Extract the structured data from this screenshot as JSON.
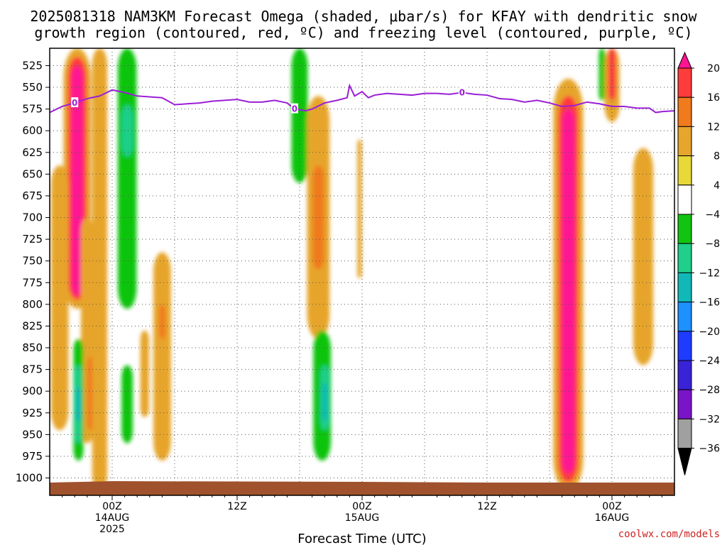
{
  "title": {
    "line1": "2025081318 NAM3KM Forecast Omega (shaded, μbar/s) for KFAY with dendritic snow",
    "line2": "growth region (contoured, red, ºC) and freezing level (contoured, purple, ºC)"
  },
  "credit": "coolwx.com/models",
  "colors": {
    "freezing_level": "#9b1fd6",
    "ground": "#a0522d",
    "grid": "#555555"
  },
  "chart_data": {
    "type": "heatmap",
    "title": "2025081318 NAM3KM Forecast Omega (shaded, μbar/s) for KFAY with dendritic snow growth region (contoured, red, ºC) and freezing level (contoured, purple, ºC)",
    "xlabel": "Forecast Time (UTC)",
    "ylabel": "",
    "x_range_hours": [
      -5,
      45
    ],
    "x_ticks": [
      {
        "hour": 0,
        "line1": "00Z",
        "line2": "14AUG",
        "line3": "2025"
      },
      {
        "hour": 10,
        "line1": "12Z",
        "line2": "",
        "line3": ""
      },
      {
        "hour": 20,
        "line1": "00Z",
        "line2": "15AUG",
        "line3": ""
      },
      {
        "hour": 30,
        "line1": "12Z",
        "line2": "",
        "line3": ""
      },
      {
        "hour": 40,
        "line1": "00Z",
        "line2": "16AUG",
        "line3": ""
      }
    ],
    "y_range_hpa": [
      1020,
      505
    ],
    "y_ticks": [
      525,
      550,
      575,
      600,
      625,
      650,
      675,
      700,
      725,
      750,
      775,
      800,
      825,
      850,
      875,
      900,
      925,
      950,
      975,
      1000
    ],
    "colorbar": {
      "levels": [
        "20",
        "16",
        "12",
        "8",
        "4",
        "−4",
        "−8",
        "−12",
        "−16",
        "−20",
        "−24",
        "−28",
        "−32",
        "−36"
      ],
      "colors": [
        "#ff1493",
        "#ff3b3b",
        "#f07a1c",
        "#e6a52c",
        "#e8d838",
        "#ffffff",
        "#11c411",
        "#1fcf8a",
        "#11b8b8",
        "#1e90ff",
        "#1e3cff",
        "#3a22d6",
        "#7a14c8",
        "#a0a0a0",
        "#000000"
      ]
    },
    "freezing_level": {
      "label": "0",
      "points": [
        [
          -5,
          579
        ],
        [
          -4,
          572
        ],
        [
          -3,
          568
        ],
        [
          -2,
          563
        ],
        [
          -1,
          560
        ],
        [
          0,
          553
        ],
        [
          1,
          556
        ],
        [
          2,
          560
        ],
        [
          3,
          561
        ],
        [
          4,
          562
        ],
        [
          5,
          570
        ],
        [
          6,
          569
        ],
        [
          7,
          568
        ],
        [
          8,
          566
        ],
        [
          9,
          565
        ],
        [
          10,
          564
        ],
        [
          11,
          567
        ],
        [
          12,
          567
        ],
        [
          13,
          565
        ],
        [
          14,
          568
        ],
        [
          14.6,
          575
        ],
        [
          15.5,
          577
        ],
        [
          16,
          575
        ],
        [
          17,
          568
        ],
        [
          18,
          565
        ],
        [
          18.8,
          562
        ],
        [
          19,
          548
        ],
        [
          19.4,
          560
        ],
        [
          20,
          555
        ],
        [
          20.5,
          562
        ],
        [
          21,
          559
        ],
        [
          22,
          557
        ],
        [
          23,
          558
        ],
        [
          24,
          559
        ],
        [
          25,
          557
        ],
        [
          26,
          557
        ],
        [
          27,
          558
        ],
        [
          28,
          556
        ],
        [
          29,
          558
        ],
        [
          30,
          559
        ],
        [
          31,
          563
        ],
        [
          32,
          564
        ],
        [
          33,
          567
        ],
        [
          34,
          565
        ],
        [
          35,
          568
        ],
        [
          36,
          572
        ],
        [
          37,
          571
        ],
        [
          38,
          567
        ],
        [
          39,
          569
        ],
        [
          40,
          572
        ],
        [
          41,
          572
        ],
        [
          42,
          574
        ],
        [
          43,
          574
        ],
        [
          43.5,
          579
        ],
        [
          44,
          578
        ],
        [
          45,
          577
        ]
      ]
    },
    "omega_features": [
      {
        "hour": -2.8,
        "p_top": 505,
        "p_bot": 805,
        "halfwidth": 1.1,
        "value": 6
      },
      {
        "hour": -2.8,
        "p_top": 515,
        "p_bot": 795,
        "halfwidth": 0.75,
        "value": 14
      },
      {
        "hour": -2.8,
        "p_top": 525,
        "p_bot": 790,
        "halfwidth": 0.45,
        "value": 18
      },
      {
        "hour": -4.2,
        "p_top": 640,
        "p_bot": 945,
        "halfwidth": 0.7,
        "value": 6
      },
      {
        "hour": -2.0,
        "p_top": 700,
        "p_bot": 960,
        "halfwidth": 0.5,
        "value": 6
      },
      {
        "hour": -1.7,
        "p_top": 860,
        "p_bot": 945,
        "halfwidth": 0.3,
        "value": 10
      },
      {
        "hour": -1.0,
        "p_top": 505,
        "p_bot": 1015,
        "halfwidth": 0.6,
        "value": 6
      },
      {
        "hour": -2.7,
        "p_top": 840,
        "p_bot": 980,
        "halfwidth": 0.4,
        "value": -6
      },
      {
        "hour": -2.7,
        "p_top": 870,
        "p_bot": 960,
        "halfwidth": 0.28,
        "value": -10
      },
      {
        "hour": -2.7,
        "p_top": 895,
        "p_bot": 935,
        "halfwidth": 0.2,
        "value": -14
      },
      {
        "hour": 1.2,
        "p_top": 505,
        "p_bot": 805,
        "halfwidth": 0.75,
        "value": -6
      },
      {
        "hour": 1.2,
        "p_top": 570,
        "p_bot": 630,
        "halfwidth": 0.45,
        "value": -10
      },
      {
        "hour": 1.2,
        "p_top": 870,
        "p_bot": 960,
        "halfwidth": 0.45,
        "value": -6
      },
      {
        "hour": 2.6,
        "p_top": 830,
        "p_bot": 930,
        "halfwidth": 0.35,
        "value": 6
      },
      {
        "hour": 4.0,
        "p_top": 740,
        "p_bot": 980,
        "halfwidth": 0.7,
        "value": 6
      },
      {
        "hour": 4.0,
        "p_top": 800,
        "p_bot": 840,
        "halfwidth": 0.25,
        "value": 10
      },
      {
        "hour": 15.0,
        "p_top": 505,
        "p_bot": 660,
        "halfwidth": 0.65,
        "value": -6
      },
      {
        "hour": 16.5,
        "p_top": 560,
        "p_bot": 840,
        "halfwidth": 0.9,
        "value": 6
      },
      {
        "hour": 16.5,
        "p_top": 640,
        "p_bot": 760,
        "halfwidth": 0.45,
        "value": 10
      },
      {
        "hour": 16.8,
        "p_top": 830,
        "p_bot": 980,
        "halfwidth": 0.7,
        "value": -6
      },
      {
        "hour": 17.0,
        "p_top": 870,
        "p_bot": 945,
        "halfwidth": 0.35,
        "value": -10
      },
      {
        "hour": 17.0,
        "p_top": 890,
        "p_bot": 935,
        "halfwidth": 0.2,
        "value": -14
      },
      {
        "hour": 19.8,
        "p_top": 610,
        "p_bot": 770,
        "halfwidth": 0.18,
        "value": 6
      },
      {
        "hour": 36.5,
        "p_top": 540,
        "p_bot": 1015,
        "halfwidth": 1.2,
        "value": 6
      },
      {
        "hour": 36.5,
        "p_top": 560,
        "p_bot": 1005,
        "halfwidth": 0.8,
        "value": 14
      },
      {
        "hour": 36.5,
        "p_top": 575,
        "p_bot": 995,
        "halfwidth": 0.5,
        "value": 18
      },
      {
        "hour": 39.2,
        "p_top": 505,
        "p_bot": 565,
        "halfwidth": 0.25,
        "value": -6
      },
      {
        "hour": 40.0,
        "p_top": 505,
        "p_bot": 590,
        "halfwidth": 0.6,
        "value": 6
      },
      {
        "hour": 40.0,
        "p_top": 505,
        "p_bot": 565,
        "halfwidth": 0.3,
        "value": 14
      },
      {
        "hour": 42.5,
        "p_top": 620,
        "p_bot": 870,
        "halfwidth": 0.8,
        "value": 6
      }
    ]
  }
}
